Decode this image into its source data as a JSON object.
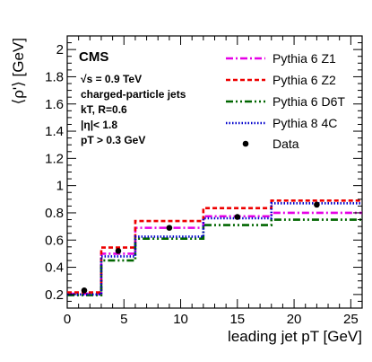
{
  "chart_data": {
    "type": "line",
    "experiment_label": "CMS",
    "info_lines": [
      "√s = 0.9 TeV",
      "charged-particle jets",
      "kT, R=0.6",
      "|η|< 1.8",
      "pT > 0.3 GeV"
    ],
    "xlabel": "leading jet pT [GeV]",
    "ylabel": "⟨ρ'⟩ [GeV]",
    "xlim": [
      0,
      26
    ],
    "ylim": [
      0.1,
      2.1
    ],
    "x_ticks": [
      0,
      5,
      10,
      15,
      20,
      25
    ],
    "y_ticks": [
      0.2,
      0.4,
      0.6,
      0.8,
      1.0,
      1.2,
      1.4,
      1.6,
      1.8,
      2.0
    ],
    "y_tick_labels": [
      "0.2",
      "0.4",
      "0.6",
      "0.8",
      "1",
      "1.2",
      "1.4",
      "1.6",
      "1.8",
      "2"
    ],
    "bin_edges": [
      0,
      3,
      6,
      12,
      18,
      26
    ],
    "series": [
      {
        "name": "Pythia 6 Z1",
        "style": "dashdot",
        "color": "#e600e6",
        "values": [
          0.205,
          0.5,
          0.69,
          0.775,
          0.8
        ]
      },
      {
        "name": "Pythia 6 Z2",
        "style": "dashed",
        "color": "#ee0000",
        "values": [
          0.215,
          0.545,
          0.74,
          0.835,
          0.89
        ]
      },
      {
        "name": "Pythia 6 D6T",
        "style": "dashdotdot",
        "color": "#006600",
        "values": [
          0.195,
          0.45,
          0.61,
          0.71,
          0.75
        ]
      },
      {
        "name": "Pythia 8 4C",
        "style": "dotted",
        "color": "#0000cc",
        "values": [
          0.2,
          0.48,
          0.625,
          0.76,
          0.87
        ]
      }
    ],
    "data_points": {
      "name": "Data",
      "x": [
        1.5,
        4.5,
        9.0,
        15.0,
        22.0
      ],
      "y": [
        0.23,
        0.52,
        0.69,
        0.77,
        0.86
      ],
      "yerr": [
        0.005,
        0.01,
        0.01,
        0.02,
        0.015
      ]
    },
    "grid": false,
    "legend_position": "top-right"
  }
}
